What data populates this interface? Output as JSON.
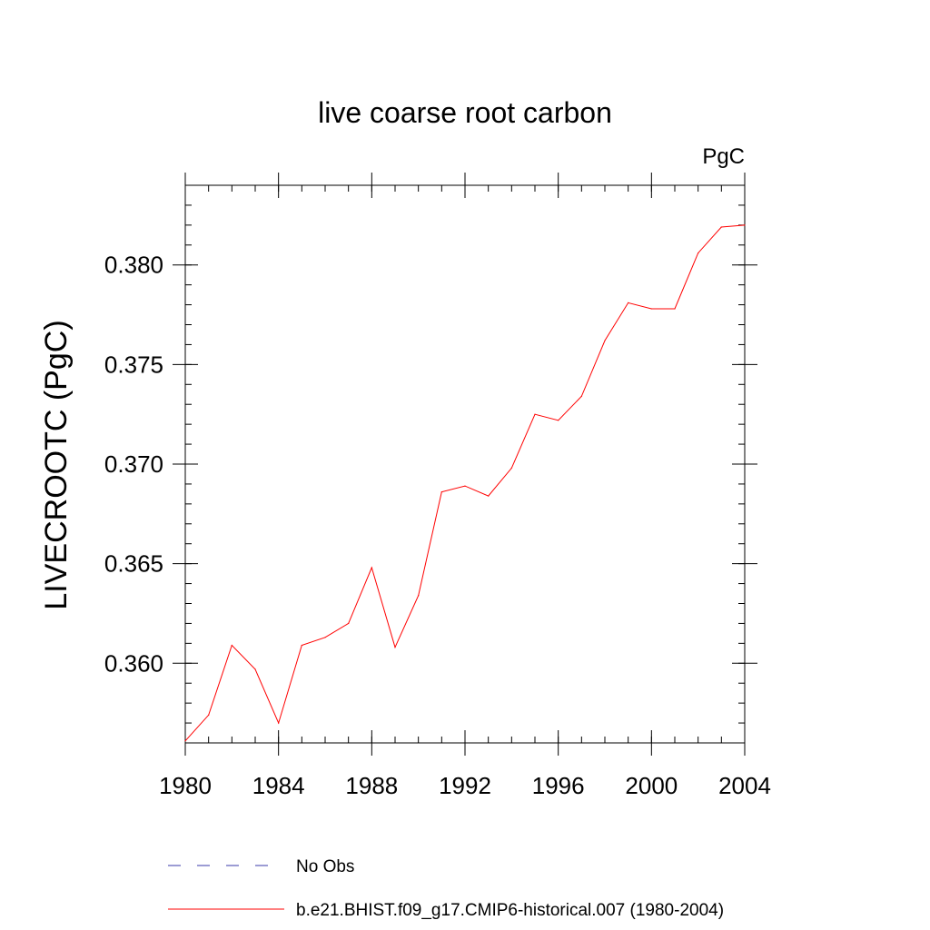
{
  "chart_data": {
    "type": "line",
    "title": "live coarse root carbon",
    "units_label": "PgC",
    "ylabel": "LIVECROOTC  (PgC)",
    "xlabel": "",
    "xlim": [
      1980,
      2004
    ],
    "ylim": [
      0.356,
      0.384
    ],
    "x_ticks": [
      "1980",
      "1984",
      "1988",
      "1992",
      "1996",
      "2000",
      "2004"
    ],
    "y_ticks": [
      "0.360",
      "0.365",
      "0.370",
      "0.375",
      "0.380"
    ],
    "grid": false,
    "legend_position": "bottom",
    "series": [
      {
        "name": "No Obs",
        "color": "#3a3aa8",
        "style": "dashed",
        "x": [],
        "y": []
      },
      {
        "name": "b.e21.BHIST.f09_g17.CMIP6-historical.007 (1980-2004)",
        "color": "#ff0000",
        "style": "solid",
        "x": [
          1980,
          1981,
          1982,
          1983,
          1984,
          1985,
          1986,
          1987,
          1988,
          1989,
          1990,
          1991,
          1992,
          1993,
          1994,
          1995,
          1996,
          1997,
          1998,
          1999,
          2000,
          2001,
          2002,
          2003,
          2004
        ],
        "y": [
          0.3561,
          0.3574,
          0.3609,
          0.3597,
          0.357,
          0.3609,
          0.3613,
          0.362,
          0.3648,
          0.3608,
          0.3634,
          0.3686,
          0.3689,
          0.3684,
          0.3698,
          0.3725,
          0.3722,
          0.3734,
          0.3762,
          0.3781,
          0.3778,
          0.3778,
          0.3806,
          0.3819,
          0.382
        ]
      }
    ]
  }
}
